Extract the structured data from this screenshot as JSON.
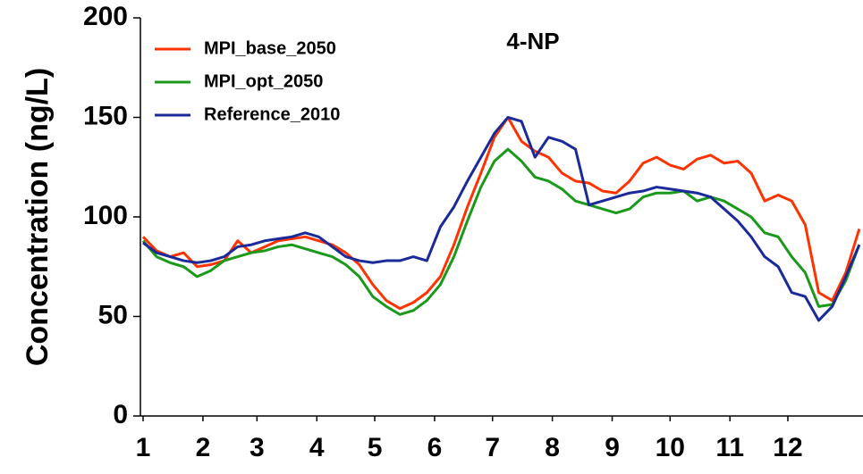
{
  "chart_data": {
    "type": "line",
    "title": "4-NP",
    "ylabel": "Concentration (ng/L)",
    "x": [
      1,
      8,
      15,
      22,
      29,
      36,
      43,
      50,
      57,
      64,
      71,
      78,
      85,
      92,
      99,
      106,
      113,
      120,
      127,
      134,
      141,
      148,
      155,
      162,
      169,
      176,
      183,
      190,
      197,
      204,
      211,
      218,
      225,
      232,
      239,
      246,
      253,
      260,
      267,
      274,
      281,
      288,
      295,
      302,
      309,
      316,
      323,
      330,
      337,
      344,
      351,
      358,
      365,
      372
    ],
    "series": [
      {
        "name": "MPI_base_2050",
        "color": "#ff3300",
        "values": [
          90,
          83,
          80,
          82,
          75,
          76,
          78,
          88,
          82,
          85,
          88,
          89,
          90,
          88,
          86,
          82,
          76,
          66,
          58,
          54,
          57,
          62,
          70,
          86,
          105,
          122,
          140,
          150,
          138,
          133,
          130,
          122,
          118,
          117,
          113,
          112,
          118,
          127,
          130,
          126,
          124,
          129,
          131,
          127,
          128,
          122,
          108,
          111,
          108,
          96,
          62,
          58,
          72,
          94
        ]
      },
      {
        "name": "MPI_opt_2050",
        "color": "#1a991a",
        "values": [
          88,
          80,
          77,
          75,
          70,
          73,
          78,
          80,
          82,
          83,
          85,
          86,
          84,
          82,
          80,
          76,
          70,
          60,
          55,
          51,
          53,
          58,
          66,
          80,
          98,
          115,
          128,
          134,
          128,
          120,
          118,
          114,
          108,
          106,
          104,
          102,
          104,
          110,
          112,
          112,
          113,
          108,
          110,
          108,
          104,
          100,
          92,
          90,
          80,
          72,
          55,
          56,
          68,
          86
        ]
      },
      {
        "name": "Reference_2010",
        "color": "#1a2a99",
        "values": [
          87,
          82,
          80,
          78,
          77,
          78,
          80,
          85,
          86,
          88,
          89,
          90,
          92,
          90,
          85,
          80,
          78,
          77,
          78,
          78,
          80,
          78,
          95,
          105,
          118,
          130,
          142,
          150,
          148,
          130,
          140,
          138,
          134,
          106,
          108,
          110,
          112,
          113,
          115,
          114,
          113,
          112,
          110,
          104,
          98,
          90,
          80,
          75,
          62,
          60,
          48,
          55,
          70,
          86
        ]
      }
    ],
    "xlim": [
      1,
      373
    ],
    "xticks": [
      1,
      {
        "value": 32,
        "label": "2"
      },
      {
        "value": 60,
        "label": "3"
      },
      {
        "value": 91,
        "label": "4"
      },
      {
        "value": 121,
        "label": "5"
      },
      {
        "value": 152,
        "label": "6"
      },
      {
        "value": 182,
        "label": "7"
      },
      {
        "value": 213,
        "label": "8"
      },
      {
        "value": 244,
        "label": "9"
      },
      {
        "value": 274,
        "label": "10"
      },
      {
        "value": 305,
        "label": "11"
      },
      {
        "value": 335,
        "label": "12"
      }
    ],
    "ylim": [
      0,
      200
    ],
    "yticks": [
      0,
      50,
      100,
      150,
      200
    ],
    "legend": "upper left"
  }
}
